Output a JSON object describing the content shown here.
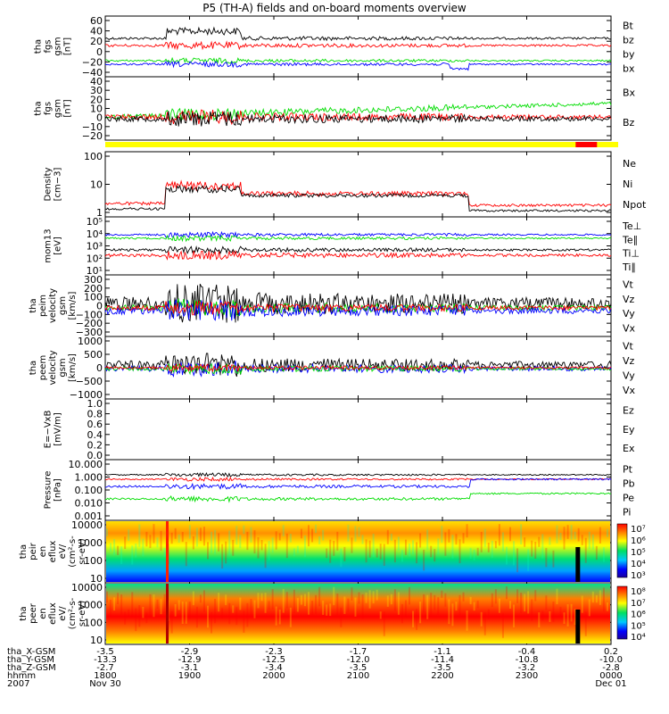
{
  "title": "P5 (TH-A) fields and on-board moments overview",
  "colors": {
    "black": "#000000",
    "red": "#ff0000",
    "green": "#00dd00",
    "blue": "#0000ff",
    "yellow": "#ffff00"
  },
  "chart_data": {
    "type": "line",
    "x_label": "hhmm",
    "x_tick_labels": [
      "1800",
      "1900",
      "2000",
      "2100",
      "2200",
      "2300",
      "0000"
    ],
    "date_labels": {
      "year": "2007",
      "start": "Nov 30",
      "end": "Dec 01"
    },
    "ephemeris": [
      {
        "name": "tha_X-GSM",
        "values": [
          "-3.5",
          "-2.9",
          "-2.3",
          "-1.7",
          "-1.1",
          "-0.4",
          "0.2"
        ]
      },
      {
        "name": "tha_Y-GSM",
        "values": [
          "-13.3",
          "-12.9",
          "-12.5",
          "-12.0",
          "-11.4",
          "-10.8",
          "-10.0"
        ]
      },
      {
        "name": "tha_Z-GSM",
        "values": [
          "-2.7",
          "-3.1",
          "-3.4",
          "-3.5",
          "-3.5",
          "-3.2",
          "-2.8"
        ]
      }
    ],
    "panels": [
      {
        "ylabel": [
          "tha",
          "fgs",
          "gsm",
          "[nT]"
        ],
        "ticks": [
          "60",
          "40",
          "20",
          "0",
          "−20",
          "−40"
        ],
        "legend": [
          {
            "name": "Bt",
            "color": "black"
          },
          {
            "name": "bz",
            "color": "red"
          },
          {
            "name": "by",
            "color": "green"
          },
          {
            "name": "bx",
            "color": "blue"
          }
        ]
      },
      {
        "ylabel": [
          "tha",
          "fgs",
          "gsm",
          "[nT]"
        ],
        "ticks": [
          "40",
          "30",
          "20",
          "10",
          "0",
          "−10",
          "−20"
        ],
        "legend": [
          {
            "name": "Bx",
            "color": "green"
          },
          {
            "name": "Bz",
            "color": "red"
          }
        ]
      },
      {
        "ylabel": [
          "Density",
          "[cm−3]"
        ],
        "ticks": [
          "100",
          "10",
          "1"
        ],
        "legend": [
          {
            "name": "Ne",
            "color": "red"
          },
          {
            "name": "Ni",
            "color": "black"
          },
          {
            "name": "Npot",
            "color": "blue"
          }
        ]
      },
      {
        "ylabel": [
          "mom13",
          "[eV]"
        ],
        "ticks": [
          "10⁵",
          "10⁴",
          "10³",
          "10²",
          "10¹"
        ],
        "legend": [
          {
            "name": "Te⊥",
            "color": "red"
          },
          {
            "name": "Te∥",
            "color": "black"
          },
          {
            "name": "Ti⊥",
            "color": "red"
          },
          {
            "name": "Ti∥",
            "color": "green"
          }
        ]
      },
      {
        "ylabel": [
          "tha",
          "peim",
          "velocity",
          "gsm",
          "[km/s]"
        ],
        "ticks": [
          "300",
          "200",
          "100",
          "0",
          "−100",
          "−200",
          "−300"
        ],
        "legend": [
          {
            "name": "Vt",
            "color": "black"
          },
          {
            "name": "Vz",
            "color": "red"
          },
          {
            "name": "Vy",
            "color": "green"
          },
          {
            "name": "Vx",
            "color": "blue"
          }
        ]
      },
      {
        "ylabel": [
          "tha",
          "peem",
          "velocity",
          "gsm",
          "[km/s]"
        ],
        "ticks": [
          "1000",
          "500",
          "0",
          "−500",
          "−1000"
        ],
        "legend": [
          {
            "name": "Vt",
            "color": "black"
          },
          {
            "name": "Vz",
            "color": "red"
          },
          {
            "name": "Vy",
            "color": "green"
          },
          {
            "name": "Vx",
            "color": "blue"
          }
        ]
      },
      {
        "ylabel": [
          "E=−VxB",
          "[mV/m]"
        ],
        "ticks": [
          "1.0",
          "0.8",
          "0.6",
          "0.4",
          "0.2",
          "0.0"
        ],
        "legend": [
          {
            "name": "Ez",
            "color": "red"
          },
          {
            "name": "Ey",
            "color": "green"
          },
          {
            "name": "Ex",
            "color": "blue"
          }
        ]
      },
      {
        "ylabel": [
          "Pressure",
          "[nPa]"
        ],
        "ticks": [
          "10.000",
          "1.000",
          "0.100",
          "0.010",
          "0.001"
        ],
        "legend": [
          {
            "name": "Pt",
            "color": "black"
          },
          {
            "name": "Pb",
            "color": "red"
          },
          {
            "name": "Pe",
            "color": "green"
          },
          {
            "name": "Pi",
            "color": "blue"
          }
        ]
      },
      {
        "ylabel": [
          "tha",
          "peir",
          "en",
          "eflux",
          "eV/",
          "(cm²-s-",
          "sr-eV)"
        ],
        "ticks": [
          "10000",
          "1000",
          "100",
          "10"
        ],
        "colorbar": [
          "10⁷",
          "10⁶",
          "10⁵",
          "10⁴",
          "10³"
        ]
      },
      {
        "ylabel": [
          "tha",
          "peer",
          "en",
          "eflux",
          "eV/",
          "(cm²-s-",
          "sr-eV)"
        ],
        "ticks": [
          "10000",
          "1000",
          "100",
          "10"
        ],
        "colorbar": [
          "10⁸",
          "10⁷",
          "10⁶",
          "10⁵",
          "10⁴"
        ]
      }
    ]
  }
}
